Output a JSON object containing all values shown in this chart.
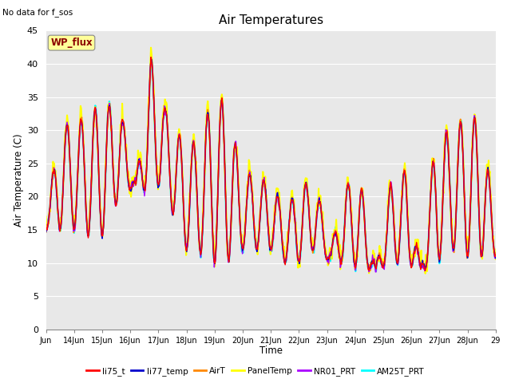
{
  "title": "Air Temperatures",
  "ylabel": "Air Temperature (C)",
  "xlabel": "Time",
  "annotation": "No data for f_sos",
  "wp_flux_label": "WP_flux",
  "ylim": [
    0,
    45
  ],
  "yticks": [
    0,
    5,
    10,
    15,
    20,
    25,
    30,
    35,
    40,
    45
  ],
  "x_tick_labels": [
    "Jun",
    "14Jun",
    "15Jun",
    "16Jun",
    "17Jun",
    "18Jun",
    "19Jun",
    "20Jun",
    "21Jun",
    "22Jun",
    "23Jun",
    "24Jun",
    "25Jun",
    "26Jun",
    "27Jun",
    "28Jun",
    "29"
  ],
  "bg_color": "#e8e8e8",
  "series_colors": {
    "li75_t": "#ff0000",
    "li77_temp": "#0000cc",
    "AirT": "#ff8800",
    "PanelTemp": "#ffff00",
    "NR01_PRT": "#aa00ff",
    "AM25T_PRT": "#00ffff"
  },
  "series_lw": {
    "li75_t": 1.0,
    "li77_temp": 1.0,
    "AirT": 1.2,
    "PanelTemp": 1.5,
    "NR01_PRT": 1.0,
    "AM25T_PRT": 1.5
  },
  "n_days": 16,
  "half_period_peaks": [
    17,
    31,
    31,
    33,
    34,
    33,
    22,
    41,
    33,
    29,
    28,
    34,
    35,
    24,
    23,
    22,
    18,
    22,
    22,
    12,
    22,
    22,
    9,
    22,
    24,
    9,
    29,
    30,
    32,
    32,
    16
  ],
  "half_period_troughs": [
    15,
    15,
    15,
    14,
    14,
    21,
    21,
    21,
    22,
    12,
    12,
    10,
    10,
    12,
    12,
    12,
    10,
    10,
    12,
    10,
    10,
    9,
    9,
    10,
    10,
    9,
    10,
    12,
    11,
    11,
    11
  ]
}
